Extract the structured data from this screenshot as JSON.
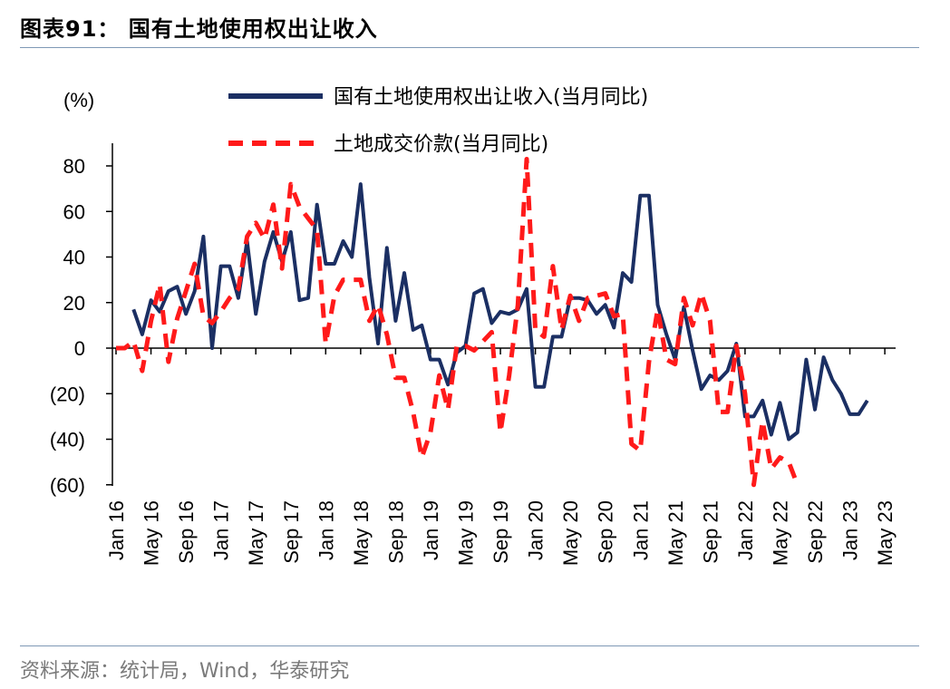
{
  "header": {
    "title": "图表91：  国有土地使用权出让收入"
  },
  "footer": {
    "source": "资料来源：统计局，Wind，华泰研究"
  },
  "colors": {
    "series1": "#1b2f63",
    "series2": "#ff1a1a",
    "rule": "#7f98b5"
  },
  "chart_data": {
    "type": "line",
    "ylabel": "(%)",
    "ylim": [
      -60,
      90
    ],
    "yticks": [
      80,
      60,
      40,
      20,
      0,
      -20,
      -40,
      -60
    ],
    "ytick_labels": [
      "80",
      "60",
      "40",
      "20",
      "0",
      "(20)",
      "(40)",
      "(60)"
    ],
    "xtick_labels": [
      "Jan 16",
      "May 16",
      "Sep 16",
      "Jan 17",
      "May 17",
      "Sep 17",
      "Jan 18",
      "May 18",
      "Sep 18",
      "Jan 19",
      "May 19",
      "Sep 19",
      "Jan 20",
      "May 20",
      "Sep 20",
      "Jan 21",
      "May 21",
      "Sep 21",
      "Jan 22",
      "May 22",
      "Sep 22",
      "Jan 23",
      "May 23"
    ],
    "x_start": "2016-01",
    "x_end": "2023-05",
    "legend_position": "top",
    "series": [
      {
        "name": "国有土地使用权出让收入(当月同比)",
        "style": "solid",
        "start": "2016-03",
        "values": [
          17,
          6,
          21,
          16,
          25,
          27,
          15,
          25,
          49,
          0,
          36,
          36,
          22,
          47,
          15,
          38,
          51,
          38,
          51,
          21,
          22,
          63,
          37,
          37,
          47,
          40,
          72,
          31,
          2,
          44,
          12,
          33,
          8,
          10,
          -5,
          -5,
          -16,
          -2,
          1,
          24,
          26,
          11,
          16,
          15,
          17,
          26,
          -17,
          -17,
          5,
          5,
          22,
          22,
          21,
          15,
          19,
          9,
          33,
          29,
          67,
          67,
          19,
          6,
          -5,
          18,
          -1,
          -18,
          -12,
          -14,
          -10,
          2,
          -30,
          -30,
          -23,
          -38,
          -24,
          -40,
          -37,
          -5,
          -27,
          -4,
          -14,
          -20,
          -29,
          -29,
          -23
        ]
      },
      {
        "name": "土地成交价款(当月同比)",
        "style": "dashed",
        "start": "2016-01",
        "values": [
          0,
          0,
          3,
          -10,
          12,
          28,
          -6,
          13,
          25,
          37,
          14,
          11,
          16,
          22,
          26,
          49,
          55,
          48,
          63,
          35,
          72,
          62,
          57,
          52,
          2,
          23,
          30,
          30,
          30,
          12,
          19,
          6,
          -13,
          -13,
          -28,
          -48,
          -37,
          -12,
          -27,
          1,
          1,
          -1,
          3,
          7,
          -37,
          -12,
          19,
          83,
          8,
          5,
          36,
          8,
          23,
          12,
          22,
          23,
          24,
          14,
          15,
          -42,
          -45,
          -6,
          17,
          -5,
          -7,
          22,
          10,
          24,
          12,
          -28,
          -28,
          1,
          -20,
          -60,
          -32,
          -53,
          -48,
          -50,
          -60
        ]
      }
    ]
  }
}
